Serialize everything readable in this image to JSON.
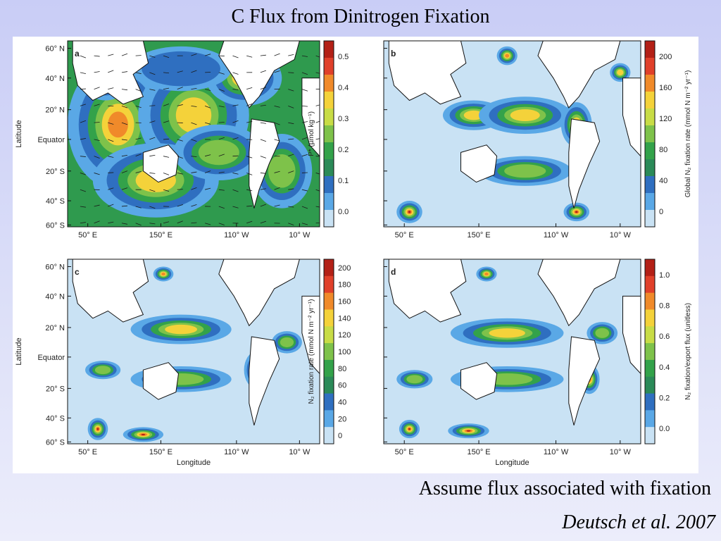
{
  "slide": {
    "title": "C Flux from Dinitrogen Fixation",
    "caption": "Assume flux associated with fixation",
    "citation": "Deutsch et al. 2007"
  },
  "axes": {
    "latitude_label": "Latitude",
    "longitude_label": "Longitude",
    "lat_ticks": [
      "60° N",
      "40° N",
      "20° N",
      "Equator",
      "20° S",
      "40° S",
      "60° S"
    ],
    "lon_ticks": [
      "50° E",
      "150° E",
      "110° W",
      "10° W"
    ]
  },
  "panels": [
    {
      "letter": "a",
      "colorbar_label": "P* (µmol kg⁻¹)",
      "ticks": [
        "0.5",
        "0.4",
        "0.3",
        "0.2",
        "0.1",
        "0.0"
      ],
      "colors": [
        "#b32016",
        "#e0402a",
        "#f08a2a",
        "#f4d23a",
        "#c8dc46",
        "#7ec24a",
        "#33a24a",
        "#2b8a58",
        "#2f6fc0",
        "#5aa8e6",
        "#c9e2f4"
      ]
    },
    {
      "letter": "b",
      "colorbar_label": "Global N₂ fixation rate (mmol N m⁻² yr⁻¹)",
      "ticks": [
        "200",
        "160",
        "120",
        "80",
        "40",
        "0"
      ],
      "colors": [
        "#b32016",
        "#e0402a",
        "#f08a2a",
        "#f4d23a",
        "#c8dc46",
        "#7ec24a",
        "#33a24a",
        "#2b8a58",
        "#2f6fc0",
        "#5aa8e6",
        "#c9e2f4"
      ]
    },
    {
      "letter": "c",
      "colorbar_label": "N₂ fixation rate (mmol N m⁻² yr⁻¹)",
      "ticks": [
        "200",
        "180",
        "160",
        "140",
        "120",
        "100",
        "80",
        "60",
        "40",
        "20",
        "0"
      ],
      "colors": [
        "#b32016",
        "#e0402a",
        "#f08a2a",
        "#f4d23a",
        "#c8dc46",
        "#7ec24a",
        "#33a24a",
        "#2b8a58",
        "#2f6fc0",
        "#5aa8e6",
        "#c9e2f4"
      ]
    },
    {
      "letter": "d",
      "colorbar_label": "N₂ fixation/export flux (unitless)",
      "ticks": [
        "1.0",
        "0.8",
        "0.6",
        "0.4",
        "0.2",
        "0.0"
      ],
      "colors": [
        "#b32016",
        "#e0402a",
        "#f08a2a",
        "#f4d23a",
        "#c8dc46",
        "#7ec24a",
        "#33a24a",
        "#2b8a58",
        "#2f6fc0",
        "#5aa8e6",
        "#c9e2f4"
      ]
    }
  ]
}
